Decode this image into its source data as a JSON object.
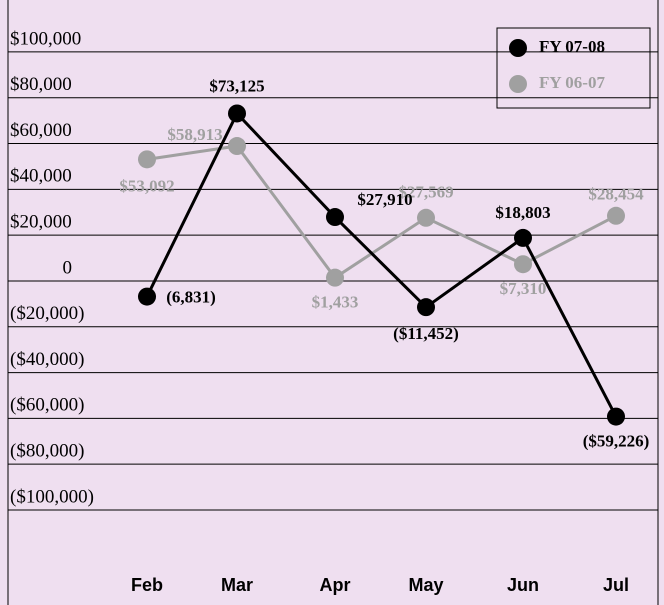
{
  "chart_data": {
    "type": "line",
    "categories": [
      "Feb",
      "Mar",
      "Apr",
      "May",
      "Jun",
      "Jul"
    ],
    "series": [
      {
        "name": "FY 07-08",
        "color": "#000000",
        "values": [
          -6831,
          73125,
          27910,
          -11452,
          18803,
          -59226
        ],
        "value_labels": [
          "(6,831)",
          "$73,125",
          "$27,910",
          "($11,452)",
          "$18,803",
          "($59,226)"
        ]
      },
      {
        "name": "FY 06-07",
        "color": "#a0a0a0",
        "values": [
          53092,
          58913,
          1433,
          27569,
          7310,
          28454
        ],
        "value_labels": [
          "$53,092",
          "$58,913",
          "$1,433",
          "$27,569",
          "$7,310",
          "$28,454"
        ]
      }
    ],
    "ylim": [
      -120000,
      110000
    ],
    "yticks": [
      {
        "value": 100000,
        "label": "$100,000"
      },
      {
        "value": 80000,
        "label": "$80,000"
      },
      {
        "value": 60000,
        "label": "$60,000"
      },
      {
        "value": 40000,
        "label": "$40,000"
      },
      {
        "value": 20000,
        "label": "$20,000"
      },
      0,
      {
        "value": -20000,
        "label": "($20,000)"
      },
      {
        "value": -40000,
        "label": "($40,000)"
      },
      {
        "value": -60000,
        "label": "($60,000)"
      },
      {
        "value": -80000,
        "label": "($80,000)"
      },
      {
        "value": -100000,
        "label": "($100,000)"
      }
    ],
    "grid": true,
    "legend": "top-right"
  }
}
